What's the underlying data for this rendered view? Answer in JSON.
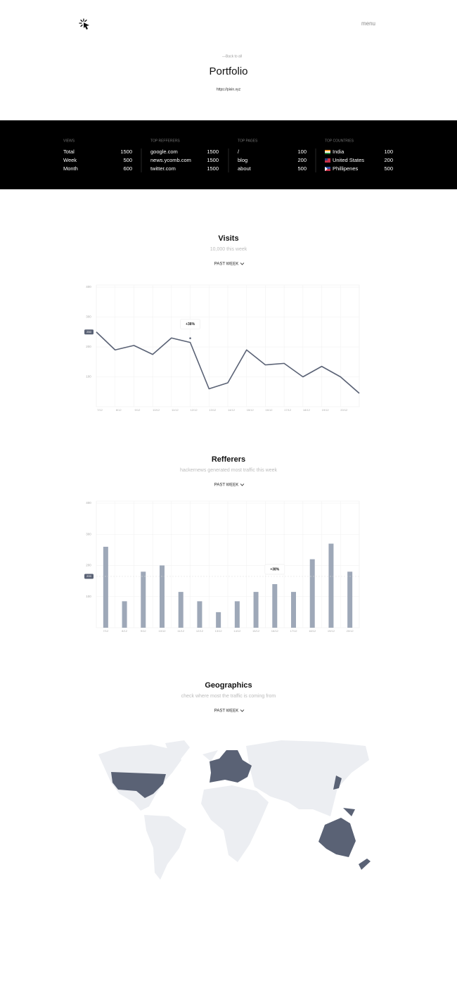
{
  "header": {
    "menu": "menu"
  },
  "hero": {
    "back": "—Back to all",
    "title": "Portfolio",
    "url": "https://pixin.xyz"
  },
  "stats": [
    {
      "heading": "VIEWS",
      "rows": [
        [
          "Total",
          "1500"
        ],
        [
          "Week",
          "500"
        ],
        [
          "Month",
          "600"
        ]
      ]
    },
    {
      "heading": "TOP REFFERERS",
      "rows": [
        [
          "google.com",
          "1500"
        ],
        [
          "news.ycomb.com",
          "1500"
        ],
        [
          "twitter.com",
          "1500"
        ]
      ]
    },
    {
      "heading": "TOP PAGES",
      "rows": [
        [
          "/",
          "100"
        ],
        [
          "blog",
          "200"
        ],
        [
          "about",
          "500"
        ]
      ]
    },
    {
      "heading": "TOP COUNTRIES",
      "rows": [
        [
          "India",
          "100"
        ],
        [
          "United States",
          "200"
        ],
        [
          "Phillipenes",
          "500"
        ]
      ]
    }
  ],
  "chart_data": [
    {
      "type": "line",
      "title": "Visits",
      "subtitle": "10,000 this week",
      "dropdown": "PAST WEEK",
      "categories": [
        "7/12",
        "8/12",
        "9/12",
        "10/12",
        "11/12",
        "12/12",
        "13/12",
        "14/12",
        "15/12",
        "16/12",
        "17/12",
        "18/12",
        "19/12",
        "20/12",
        null
      ],
      "values": [
        250,
        190,
        205,
        175,
        230,
        215,
        60,
        80,
        190,
        140,
        145,
        100,
        135,
        100,
        45
      ],
      "color": "#5a6275",
      "ylim": [
        0,
        400
      ],
      "yticks": [
        100,
        200,
        300,
        400
      ],
      "grid": true,
      "highlight_tick": 250,
      "annotation": "+38%"
    },
    {
      "type": "bar",
      "title": "Refferers",
      "subtitle": "hackernews generated most traffic this week",
      "dropdown": "PAST WEEK",
      "categories": [
        "7/12",
        "8/12",
        "9/12",
        "10/12",
        "11/12",
        "12/12",
        "13/12",
        "14/12",
        "15/12",
        "16/12",
        "17/12",
        "18/12",
        "19/12",
        "20/12"
      ],
      "values": [
        260,
        85,
        180,
        200,
        115,
        85,
        50,
        85,
        115,
        140,
        115,
        220,
        270,
        180
      ],
      "color": "#9ea8b8",
      "ylim": [
        0,
        400
      ],
      "yticks": [
        100,
        200,
        300,
        400
      ],
      "grid": true,
      "highlight_tick": 165,
      "highlight_label": "200",
      "annotation": "+38%"
    }
  ],
  "geo": {
    "title": "Geographics",
    "subtitle": "check where most the traffic is coming from",
    "dropdown": "PAST WEEK"
  }
}
